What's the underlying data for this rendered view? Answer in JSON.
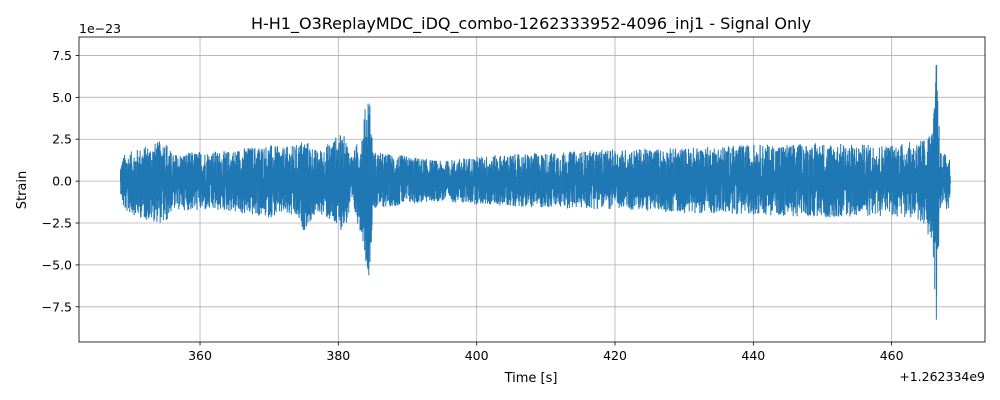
{
  "chart_data": {
    "type": "line",
    "title": "H-H1_O3ReplayMDC_iDQ_combo-1262333952-4096_inj1 - Signal Only",
    "xlabel": "Time [s]",
    "ylabel": "Strain",
    "x_offset_label": "+1.262334e9",
    "y_scale_label": "1e−23",
    "xlim": [
      342.5,
      473.5
    ],
    "ylim": [
      -9.6,
      8.6
    ],
    "x_ticks": [
      360,
      380,
      400,
      420,
      440,
      460
    ],
    "x_tick_labels": [
      "360",
      "380",
      "400",
      "420",
      "440",
      "460"
    ],
    "y_ticks": [
      7.5,
      5.0,
      2.5,
      0.0,
      -2.5,
      -5.0,
      -7.5
    ],
    "y_tick_labels": [
      "7.5",
      "5.0",
      "2.5",
      "0.0",
      "−2.5",
      "−5.0",
      "−7.5"
    ],
    "grid": true,
    "series": [
      {
        "color": "#1f77b4",
        "x_range": [
          348.5,
          468.5
        ],
        "envelope": {
          "x": [
            348.5,
            349.0,
            352.0,
            355.0,
            356.0,
            360.0,
            364.0,
            366.0,
            368.0,
            370.0,
            372.0,
            374.0,
            375.0,
            377.0,
            378.0,
            380.0,
            381.0,
            382.0,
            383.5,
            384.0,
            384.5,
            385.0,
            386.0,
            390.0,
            395.0,
            400.0,
            405.0,
            410.0,
            420.0,
            430.0,
            440.0,
            445.0,
            450.0,
            455.0,
            460.0,
            462.0,
            464.0,
            465.0,
            466.0,
            466.5,
            467.0,
            468.5
          ],
          "upper": [
            1.0,
            1.6,
            2.1,
            2.5,
            1.6,
            1.8,
            1.8,
            2.0,
            2.1,
            2.2,
            2.0,
            2.2,
            2.6,
            1.8,
            2.1,
            2.8,
            2.7,
            1.5,
            3.2,
            4.8,
            5.9,
            1.8,
            1.7,
            1.5,
            1.2,
            1.5,
            1.6,
            1.7,
            1.9,
            2.0,
            2.2,
            2.2,
            2.3,
            2.2,
            2.2,
            2.3,
            2.4,
            2.6,
            3.3,
            7.7,
            1.8,
            1.4
          ],
          "lower": [
            -0.7,
            -1.8,
            -2.3,
            -2.6,
            -1.7,
            -1.8,
            -1.8,
            -2.0,
            -2.1,
            -2.2,
            -2.0,
            -2.3,
            -3.0,
            -1.9,
            -2.1,
            -3.0,
            -2.8,
            -1.6,
            -3.4,
            -5.0,
            -5.9,
            -1.7,
            -1.6,
            -1.4,
            -1.2,
            -1.4,
            -1.5,
            -1.6,
            -1.7,
            -1.9,
            -2.0,
            -2.1,
            -2.2,
            -2.1,
            -2.1,
            -2.2,
            -2.4,
            -2.8,
            -4.4,
            -8.9,
            -1.7,
            -1.7
          ]
        }
      }
    ]
  }
}
